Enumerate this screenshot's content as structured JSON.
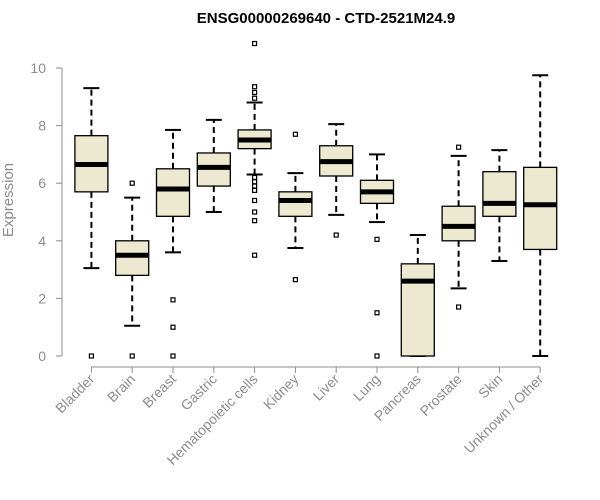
{
  "chart_data": {
    "type": "boxplot",
    "title": "ENSG00000269640 - CTD-2521M24.9",
    "ylabel": "Expression",
    "xlabel": "",
    "ylim": [
      0,
      10.9
    ],
    "yticks": [
      0,
      2,
      4,
      6,
      8,
      10
    ],
    "grid": false,
    "colors": {
      "box_fill": "#ede8d0",
      "stroke": "#000000",
      "axis": "#8c8c8c",
      "text": "#8c8c8c"
    },
    "categories": [
      "Bladder",
      "Brain",
      "Breast",
      "Gastric",
      "Hematopoietic cells",
      "Kidney",
      "Liver",
      "Lung",
      "Pancreas",
      "Prostate",
      "Skin",
      "Unknown / Other"
    ],
    "boxes": [
      {
        "category": "Bladder",
        "whisker_low": 3.05,
        "q1": 5.7,
        "median": 6.65,
        "q3": 7.65,
        "whisker_high": 9.3,
        "outliers": [
          0
        ]
      },
      {
        "category": "Brain",
        "whisker_low": 1.05,
        "q1": 2.8,
        "median": 3.5,
        "q3": 4.0,
        "whisker_high": 5.5,
        "outliers": [
          0,
          6.0
        ]
      },
      {
        "category": "Breast",
        "whisker_low": 3.6,
        "q1": 4.85,
        "median": 5.8,
        "q3": 6.5,
        "whisker_high": 7.85,
        "outliers": [
          0,
          1.0,
          1.95
        ]
      },
      {
        "category": "Gastric",
        "whisker_low": 5.0,
        "q1": 5.9,
        "median": 6.55,
        "q3": 7.05,
        "whisker_high": 8.2,
        "outliers": []
      },
      {
        "category": "Hematopoietic cells",
        "whisker_low": 6.3,
        "q1": 7.2,
        "median": 7.5,
        "q3": 7.85,
        "whisker_high": 8.8,
        "outliers": [
          3.5,
          4.7,
          5.0,
          5.4,
          5.75,
          5.9,
          6.05,
          6.2,
          8.95,
          9.15,
          9.35,
          10.85
        ]
      },
      {
        "category": "Kidney",
        "whisker_low": 3.75,
        "q1": 4.85,
        "median": 5.4,
        "q3": 5.7,
        "whisker_high": 6.35,
        "outliers": [
          2.65,
          7.7
        ]
      },
      {
        "category": "Liver",
        "whisker_low": 4.9,
        "q1": 6.25,
        "median": 6.75,
        "q3": 7.3,
        "whisker_high": 8.05,
        "outliers": [
          4.2
        ]
      },
      {
        "category": "Lung",
        "whisker_low": 4.65,
        "q1": 5.3,
        "median": 5.7,
        "q3": 6.1,
        "whisker_high": 7.0,
        "outliers": [
          0,
          1.5,
          4.05
        ]
      },
      {
        "category": "Pancreas",
        "whisker_low": 0,
        "q1": 0,
        "median": 2.6,
        "q3": 3.2,
        "whisker_high": 4.2,
        "outliers": []
      },
      {
        "category": "Prostate",
        "whisker_low": 2.35,
        "q1": 4.0,
        "median": 4.5,
        "q3": 5.2,
        "whisker_high": 6.95,
        "outliers": [
          1.7,
          7.25
        ]
      },
      {
        "category": "Skin",
        "whisker_low": 3.3,
        "q1": 4.85,
        "median": 5.3,
        "q3": 6.4,
        "whisker_high": 7.15,
        "outliers": []
      },
      {
        "category": "Unknown / Other",
        "whisker_low": 0,
        "q1": 3.7,
        "median": 5.25,
        "q3": 6.55,
        "whisker_high": 9.75,
        "outliers": []
      }
    ]
  }
}
